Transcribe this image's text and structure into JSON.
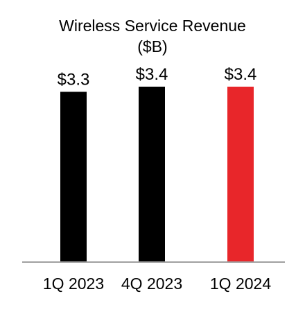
{
  "chart_data": {
    "type": "bar",
    "title": "Wireless Service Revenue",
    "subtitle": "($B)",
    "xlabel": "",
    "ylabel": "",
    "categories": [
      "1Q 2023",
      "4Q 2023",
      "1Q 2024"
    ],
    "values": [
      3.3,
      3.4,
      3.4
    ],
    "data_labels": [
      "$3.3",
      "$3.4",
      "$3.4"
    ],
    "bar_colors": [
      "#000000",
      "#000000",
      "#e8262a"
    ],
    "axis_color": "#a0a0a0",
    "ylim": [
      0,
      3.4
    ],
    "grid": false,
    "legend": "none"
  }
}
